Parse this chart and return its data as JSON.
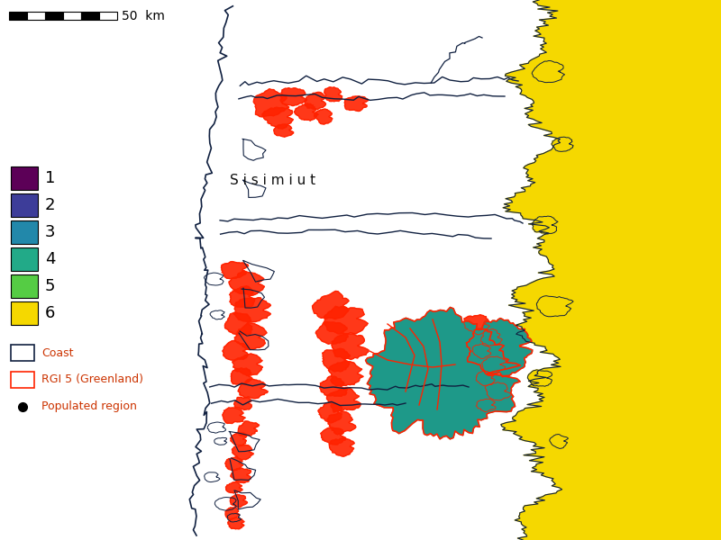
{
  "background_color": "#ffffff",
  "legend_colors": {
    "1": "#5c0057",
    "2": "#3d3d99",
    "3": "#2288aa",
    "4": "#22aa88",
    "5": "#55cc44",
    "6": "#f5d800"
  },
  "legend_labels": [
    "1",
    "2",
    "3",
    "4",
    "5",
    "6"
  ],
  "coast_color": "#102040",
  "rgi_color": "#ff2200",
  "ocean_color": "#f5d800",
  "teal_color": "#1e9989",
  "sisimiut_label": "S i s i m i u t",
  "scale_bar_label": "50  km",
  "legend_extra": [
    {
      "label": "Coast",
      "facecolor": "#ffffff",
      "edgecolor": "#102040"
    },
    {
      "label": "RGI 5 (Greenland)",
      "facecolor": "#ffffff",
      "edgecolor": "#ff2200"
    },
    {
      "label": "Populated region",
      "marker": "o",
      "color": "#000000"
    }
  ]
}
